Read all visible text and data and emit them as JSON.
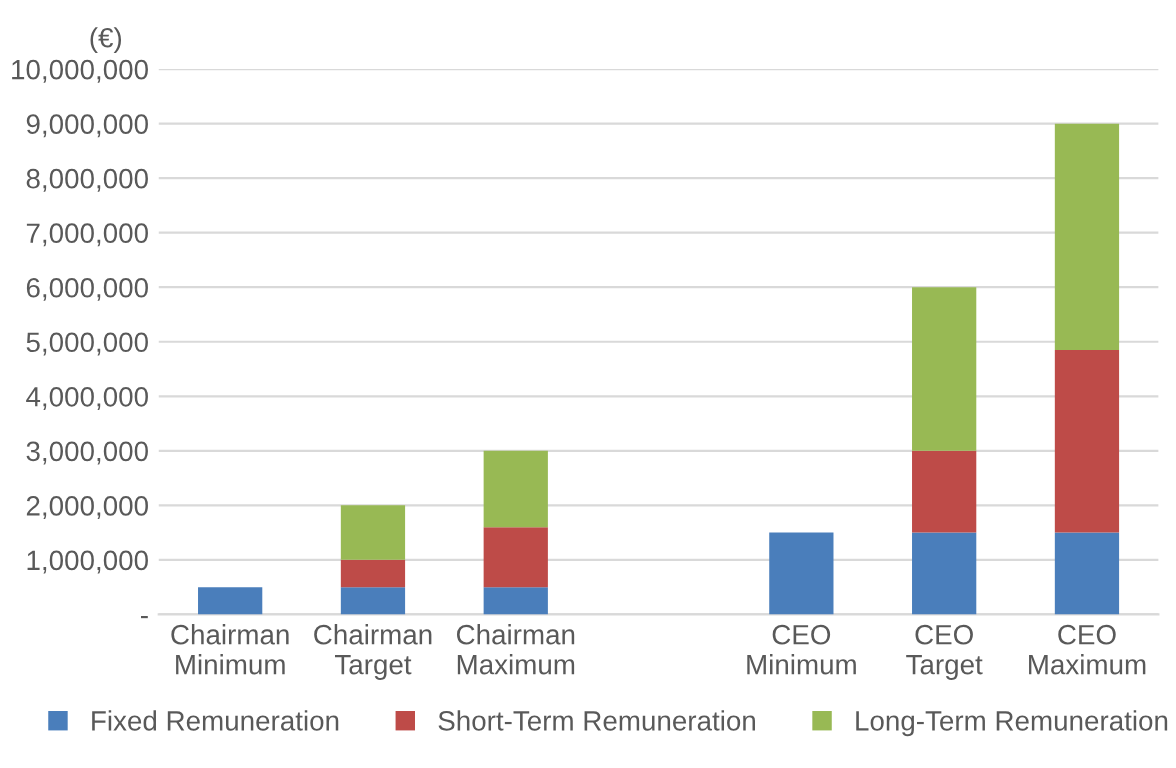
{
  "chart_data": {
    "type": "bar",
    "stacked": true,
    "ylabel": "(€)",
    "categories": [
      "Chairman\nMinimum",
      "Chairman\nTarget",
      "Chairman\nMaximum",
      null,
      "CEO\nMinimum",
      "CEO\nTarget",
      "CEO\nMaximum"
    ],
    "series": [
      {
        "name": "Fixed Remuneration",
        "color": "#4a7ebb",
        "values": [
          500000,
          500000,
          500000,
          null,
          1500000,
          1500000,
          1500000
        ]
      },
      {
        "name": "Short-Term Remuneration",
        "color": "#be4b48",
        "values": [
          null,
          500000,
          1100000,
          null,
          null,
          1500000,
          3350000
        ]
      },
      {
        "name": "Long-Term Remuneration",
        "color": "#98b954",
        "values": [
          null,
          1000000,
          1400000,
          null,
          null,
          3000000,
          4150000
        ]
      }
    ],
    "ylim": [
      0,
      10000000
    ],
    "yticks": [
      {
        "value": 0,
        "label": "-"
      },
      {
        "value": 1000000,
        "label": "1,000,000"
      },
      {
        "value": 2000000,
        "label": "2,000,000"
      },
      {
        "value": 3000000,
        "label": "3,000,000"
      },
      {
        "value": 4000000,
        "label": "4,000,000"
      },
      {
        "value": 5000000,
        "label": "5,000,000"
      },
      {
        "value": 6000000,
        "label": "6,000,000"
      },
      {
        "value": 7000000,
        "label": "7,000,000"
      },
      {
        "value": 8000000,
        "label": "8,000,000"
      },
      {
        "value": 9000000,
        "label": "9,000,000"
      },
      {
        "value": 10000000,
        "label": "10,000,000"
      }
    ],
    "grid": "y",
    "legend": "bottom"
  }
}
